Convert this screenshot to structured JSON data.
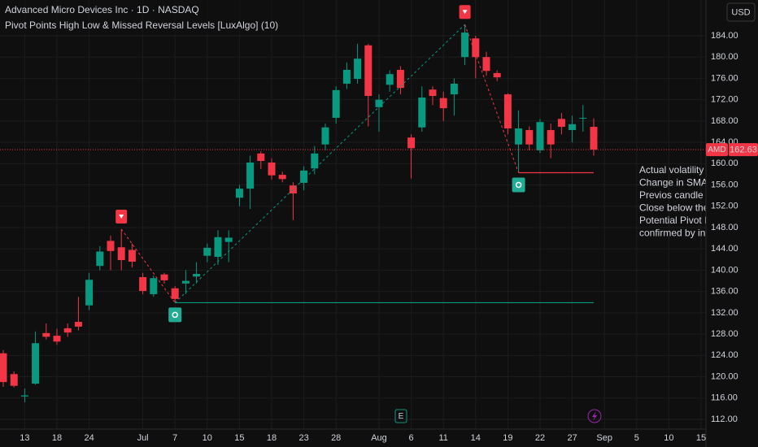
{
  "chart_data": {
    "type": "candlestick",
    "title": "Advanced Micro Devices Inc · 1D · NASDAQ",
    "subtitle": "Pivot Points High Low & Missed Reversal Levels [LuxAlgo] (10)",
    "currency": "USD",
    "categories": [
      null,
      null,
      "13",
      null,
      null,
      "18",
      null,
      null,
      "24",
      null,
      null,
      null,
      null,
      "Jul",
      null,
      null,
      "7",
      null,
      null,
      "10",
      null,
      null,
      "15",
      null,
      null,
      "18",
      null,
      null,
      "23",
      null,
      null,
      "28",
      null,
      null,
      null,
      "Aug",
      null,
      null,
      "6",
      null,
      null,
      "11",
      null,
      null,
      "14",
      null,
      null,
      "19",
      null,
      null,
      "22",
      null,
      null,
      "27",
      null,
      null,
      "Sep",
      null,
      null,
      "5",
      null,
      null,
      "10",
      null,
      null,
      "15"
    ],
    "series": [
      {
        "name": "AMD",
        "up_color": "#089981",
        "down_color": "#f23645",
        "open": [
          124.4,
          120.5,
          116.3,
          118.7,
          128.2,
          127.7,
          129.1,
          130.3,
          133.4,
          140.8,
          145.5,
          144.3,
          143.8,
          138.7,
          135.5,
          139.2,
          136.6,
          137.5,
          138.8,
          142.7,
          142.5,
          145.3,
          153.6,
          155.3,
          161.9,
          160.2,
          157.9,
          155.9,
          156.4,
          159.1,
          163.6,
          168.6,
          175.0,
          175.9,
          182.2,
          170.6,
          174.8,
          177.6,
          164.9,
          166.8,
          173.9,
          172.3,
          173.0,
          180.0,
          183.5,
          180.0,
          177.0,
          173.0,
          163.6,
          166.3,
          162.5,
          166.3,
          168.4,
          166.3,
          168.5,
          166.9,
          null,
          null,
          null,
          null,
          null,
          null,
          null,
          null,
          null,
          null
        ],
        "high": [
          125.0,
          121.0,
          117.8,
          128.5,
          130.0,
          129.0,
          130.0,
          135.0,
          139.5,
          144.5,
          146.5,
          147.7,
          145.0,
          139.5,
          139.0,
          139.5,
          137.0,
          140.0,
          141.5,
          145.0,
          147.5,
          147.5,
          156.0,
          161.5,
          162.3,
          161.0,
          158.5,
          156.5,
          159.5,
          163.3,
          167.5,
          174.5,
          179.0,
          182.5,
          182.5,
          173.0,
          177.5,
          178.3,
          165.5,
          174.5,
          174.5,
          173.5,
          176.0,
          186.1,
          184.0,
          181.0,
          177.5,
          173.2,
          170.0,
          167.0,
          168.4,
          167.5,
          169.5,
          169.0,
          171.0,
          168.5,
          null,
          null,
          null,
          null,
          null,
          null,
          null,
          null,
          null,
          null
        ],
        "low": [
          118.1,
          118.0,
          115.2,
          118.5,
          127.0,
          126.0,
          127.5,
          128.7,
          132.5,
          140.0,
          140.0,
          140.0,
          140.5,
          135.5,
          135.0,
          137.5,
          133.9,
          135.5,
          137.5,
          141.5,
          141.0,
          141.5,
          152.0,
          151.5,
          159.0,
          157.0,
          156.5,
          149.4,
          155.0,
          158.0,
          162.5,
          167.5,
          174.0,
          175.0,
          167.0,
          166.0,
          173.5,
          173.0,
          157.2,
          166.0,
          171.0,
          168.0,
          169.0,
          178.5,
          176.0,
          176.5,
          175.5,
          165.5,
          158.3,
          162.5,
          162.0,
          161.0,
          165.5,
          164.0,
          166.0,
          161.5,
          null,
          null,
          null,
          null,
          null,
          null,
          null,
          null,
          null,
          null
        ],
        "close": [
          119.0,
          118.3,
          116.5,
          126.3,
          127.5,
          126.6,
          128.3,
          129.4,
          138.2,
          143.5,
          143.6,
          141.9,
          141.6,
          136.1,
          138.5,
          138.1,
          134.6,
          138.0,
          139.3,
          144.2,
          146.2,
          146.1,
          155.3,
          160.2,
          160.5,
          157.8,
          157.1,
          154.4,
          158.7,
          161.9,
          166.8,
          173.8,
          177.6,
          179.7,
          172.7,
          172.0,
          176.8,
          174.2,
          162.9,
          172.4,
          172.7,
          170.4,
          175.0,
          184.6,
          180.0,
          177.4,
          176.2,
          166.6,
          166.6,
          163.6,
          167.8,
          163.6,
          166.9,
          167.4,
          168.6,
          162.63,
          null,
          null,
          null,
          null,
          null,
          null,
          null,
          null,
          null,
          null
        ],
        "pivots": [
          null,
          null,
          null,
          null,
          null,
          null,
          null,
          null,
          null,
          null,
          null,
          "high",
          null,
          null,
          null,
          null,
          "low",
          null,
          null,
          null,
          null,
          null,
          null,
          null,
          null,
          null,
          null,
          null,
          null,
          null,
          null,
          null,
          null,
          null,
          null,
          null,
          null,
          null,
          null,
          null,
          null,
          null,
          null,
          "high",
          null,
          null,
          null,
          null,
          "low",
          null,
          null,
          null,
          null,
          null,
          null,
          null,
          null,
          null,
          null,
          null,
          null,
          null,
          null,
          null,
          null,
          null
        ]
      }
    ],
    "ylim": [
      110.17,
      190.71
    ],
    "yticks": [
      {
        "value": 112,
        "label": "112.00"
      },
      {
        "value": 116,
        "label": "116.00"
      },
      {
        "value": 120,
        "label": "120.00"
      },
      {
        "value": 124,
        "label": "124.00"
      },
      {
        "value": 128,
        "label": "128.00"
      },
      {
        "value": 132,
        "label": "132.00"
      },
      {
        "value": 136,
        "label": "136.00"
      },
      {
        "value": 140,
        "label": "140.00"
      },
      {
        "value": 144,
        "label": "144.00"
      },
      {
        "value": 148,
        "label": "148.00"
      },
      {
        "value": 152,
        "label": "152.00"
      },
      {
        "value": 156,
        "label": "156.00"
      },
      {
        "value": 160,
        "label": "160.00"
      },
      {
        "value": 164,
        "label": "164.00"
      },
      {
        "value": 168,
        "label": "168.00"
      },
      {
        "value": 172,
        "label": "172.00"
      },
      {
        "value": 176,
        "label": "176.00"
      },
      {
        "value": 180,
        "label": "180.00"
      },
      {
        "value": 184,
        "label": "184.00"
      }
    ],
    "grid": true,
    "annotation_lines": [
      "Actual volatility is hig",
      "Change in SMA is dec",
      "Previos candle was a",
      "Close below the prior",
      "Potential Pivot Point r",
      "confirmed by increasi"
    ],
    "events": [
      "E"
    ]
  }
}
